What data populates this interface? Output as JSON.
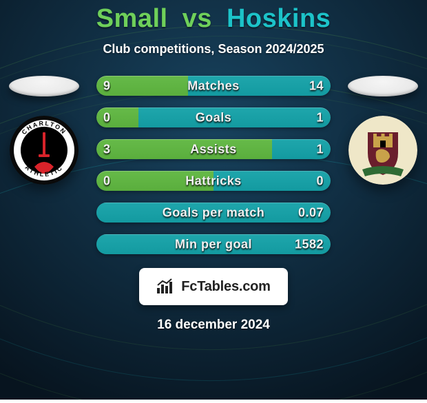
{
  "background": {
    "base_color": "#0e2a3f",
    "gradient_inner": "#18435f",
    "gradient_outer": "#07141f"
  },
  "title": {
    "player1": "Small",
    "vs": "vs",
    "player2": "Hoskins",
    "color_p1": "#6fd05a",
    "color_vs": "#6fd05a",
    "color_p2": "#1cc3c9"
  },
  "subtitle": "Club competitions, Season 2024/2025",
  "left": {
    "flag_colors": [
      "#f5f5f5",
      "#e8e8e8"
    ],
    "crest_outer": "#0a0a0a",
    "crest_ring": "#ffffff",
    "crest_inner_bg": "#000000",
    "crest_accent": "#d8232a",
    "crest_text_top": "CHARLTON",
    "crest_text_bottom": "ATHLETIC"
  },
  "right": {
    "flag_colors": [
      "#f5f5f5",
      "#e8e8e8"
    ],
    "crest_outer": "#efe7c8",
    "crest_claret": "#6a1e2c",
    "crest_gold": "#c9a24a",
    "crest_green": "#2f6b33"
  },
  "bars": {
    "fill_left_color": "#5aae3d",
    "fill_right_color": "#139aa0",
    "track_color": "#27414f",
    "items": [
      {
        "label": "Matches",
        "left_val": "9",
        "right_val": "14",
        "left_pct": 39,
        "right_pct": 61
      },
      {
        "label": "Goals",
        "left_val": "0",
        "right_val": "1",
        "left_pct": 18,
        "right_pct": 82
      },
      {
        "label": "Assists",
        "left_val": "3",
        "right_val": "1",
        "left_pct": 75,
        "right_pct": 25
      },
      {
        "label": "Hattricks",
        "left_val": "0",
        "right_val": "0",
        "left_pct": 50,
        "right_pct": 50
      },
      {
        "label": "Goals per match",
        "left_val": "",
        "right_val": "0.07",
        "left_pct": 0,
        "right_pct": 100
      },
      {
        "label": "Min per goal",
        "left_val": "",
        "right_val": "1582",
        "left_pct": 0,
        "right_pct": 100
      }
    ]
  },
  "branding": "FcTables.com",
  "date": "16 december 2024"
}
